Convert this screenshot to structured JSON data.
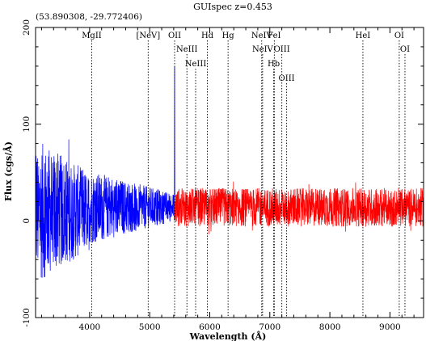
{
  "chart_data": {
    "type": "line",
    "title": "GUIspec z=0.453",
    "subtitle": "(53.890308, -29.772406)",
    "xlabel": "Wavelength (Å)",
    "ylabel": "Flux (cgs/Å)",
    "xlim": [
      3100,
      9560
    ],
    "ylim": [
      -100,
      200
    ],
    "x_ticks": [
      4000,
      5000,
      6000,
      7000,
      8000,
      9000
    ],
    "y_ticks": [
      -100,
      0,
      100,
      200
    ],
    "grid": false,
    "series": [
      {
        "color": "#0000ff",
        "x_range": [
          3100,
          5420
        ],
        "pattern": "noise",
        "peaks": [
          {
            "x": 5415,
            "y": 160
          }
        ]
      },
      {
        "color": "#ff0000",
        "x_range": [
          5420,
          9560
        ],
        "pattern": "noise"
      }
    ],
    "annotations": [
      {
        "label": "MgII",
        "x": 4035,
        "row": 0
      },
      {
        "label": "[NeV]",
        "x": 4975,
        "row": 0
      },
      {
        "label": "OII",
        "x": 5415,
        "row": 0
      },
      {
        "label": "NeIII",
        "x": 5620,
        "row": 1
      },
      {
        "label": "NeIII",
        "x": 5765,
        "row": 2
      },
      {
        "label": "Hd",
        "x": 5960,
        "row": 0
      },
      {
        "label": "Hg",
        "x": 6305,
        "row": 0
      },
      {
        "label": "NeIV",
        "x": 6865,
        "row": 0
      },
      {
        "label": "NeIV",
        "x": 6880,
        "row": 1
      },
      {
        "label": "FeI",
        "x": 7075,
        "row": 0
      },
      {
        "label": "Hb",
        "x": 7065,
        "row": 2
      },
      {
        "label": "OIII",
        "x": 7200,
        "row": 1
      },
      {
        "label": "OIII",
        "x": 7280,
        "row": 3
      },
      {
        "label": "HeI",
        "x": 8550,
        "row": 0
      },
      {
        "label": "OI",
        "x": 9155,
        "row": 0
      },
      {
        "label": "OI",
        "x": 9250,
        "row": 1
      }
    ]
  }
}
